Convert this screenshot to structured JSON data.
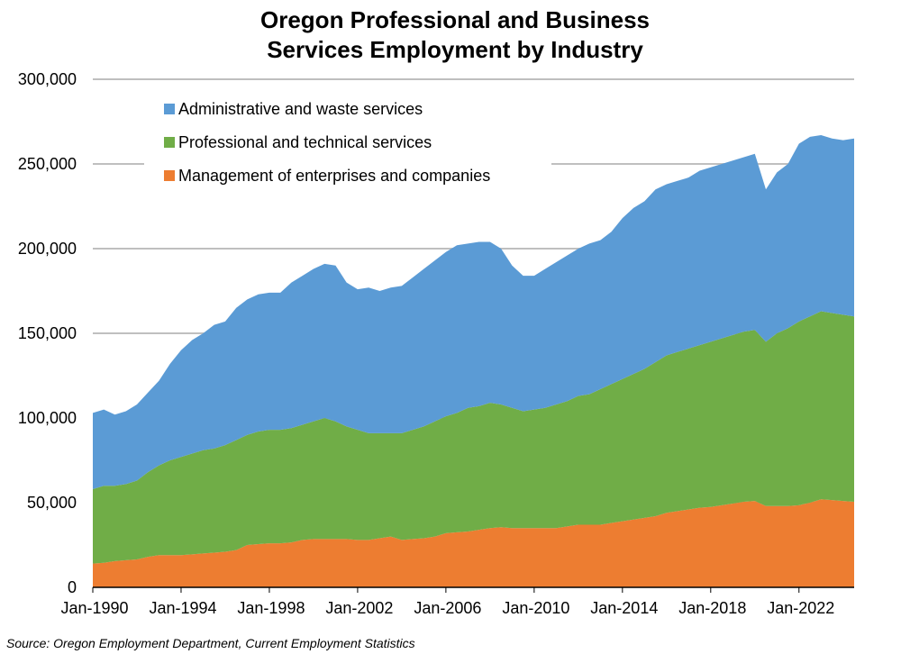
{
  "chart_data": {
    "type": "stacked_area",
    "title": "Oregon Professional and Business Services Employment by Industry",
    "source": "Source: Oregon Employment Department, Current Employment Statistics",
    "categories": [
      "Jan-1990",
      null,
      null,
      null,
      null,
      null,
      null,
      null,
      "Jan-1994",
      null,
      null,
      null,
      null,
      null,
      null,
      null,
      "Jan-1998",
      null,
      null,
      null,
      null,
      null,
      null,
      null,
      "Jan-2002",
      null,
      null,
      null,
      null,
      null,
      null,
      null,
      "Jan-2006",
      null,
      null,
      null,
      null,
      null,
      null,
      null,
      "Jan-2010",
      null,
      null,
      null,
      null,
      null,
      null,
      null,
      "Jan-2014",
      null,
      null,
      null,
      null,
      null,
      null,
      null,
      "Jan-2018",
      null,
      null,
      null,
      null,
      null,
      null,
      null,
      "Jan-2022",
      null,
      null,
      null,
      null,
      null
    ],
    "series": [
      {
        "name": "Management of enterprises and companies",
        "color": "#ed7d31",
        "values": [
          14000,
          14500,
          15500,
          16000,
          16500,
          18000,
          19000,
          19000,
          19000,
          19500,
          20000,
          20500,
          21000,
          22000,
          25000,
          25500,
          26000,
          26000,
          26500,
          28000,
          28500,
          28500,
          28500,
          28500,
          28000,
          28000,
          29000,
          30000,
          28000,
          28500,
          29000,
          30000,
          32000,
          32500,
          33000,
          34000,
          35000,
          35500,
          35000,
          35000,
          35000,
          35000,
          35000,
          36000,
          37000,
          37000,
          37000,
          38000,
          39000,
          40000,
          41000,
          42000,
          44000,
          45000,
          46000,
          47000,
          47500,
          48500,
          49500,
          50500,
          51000,
          48000,
          48000,
          48000,
          48500,
          50000,
          52000,
          51500,
          51000,
          50500
        ]
      },
      {
        "name": "Professional and technical services",
        "color": "#70ad47",
        "values": [
          44000,
          45500,
          44500,
          45000,
          46500,
          50000,
          53000,
          56000,
          58000,
          59500,
          61000,
          61500,
          63000,
          65000,
          65000,
          66500,
          67000,
          67000,
          67500,
          68000,
          69500,
          71500,
          69500,
          66500,
          65000,
          63000,
          62000,
          61000,
          63000,
          64500,
          66000,
          68000,
          69000,
          70500,
          73000,
          73000,
          74000,
          72500,
          71000,
          69000,
          70000,
          71000,
          73000,
          74000,
          76000,
          77000,
          80000,
          82000,
          84000,
          86000,
          88000,
          91000,
          93000,
          94000,
          95000,
          96000,
          97500,
          98500,
          99500,
          100500,
          101000,
          97000,
          102000,
          105000,
          108500,
          110000,
          111000,
          110500,
          110000,
          109500
        ]
      },
      {
        "name": "Administrative and waste services",
        "color": "#5b9bd5",
        "values": [
          45000,
          45000,
          42000,
          43000,
          45000,
          47000,
          50000,
          57000,
          63000,
          67000,
          69000,
          73000,
          73000,
          78000,
          80000,
          81000,
          81000,
          81000,
          86000,
          88000,
          90000,
          91000,
          92000,
          85000,
          83000,
          86000,
          84000,
          86000,
          87000,
          90000,
          93000,
          95000,
          97000,
          99000,
          97000,
          97000,
          95000,
          92000,
          84000,
          80000,
          79000,
          82000,
          84000,
          86000,
          87000,
          89000,
          88000,
          90000,
          95000,
          98000,
          99000,
          102000,
          101000,
          101000,
          101000,
          103000,
          103000,
          103000,
          103000,
          103000,
          104000,
          90000,
          95000,
          97000,
          105000,
          106000,
          104000,
          103000,
          103000,
          105000
        ]
      }
    ],
    "ylim": [
      0,
      300000
    ],
    "yticks": [
      0,
      {
        "value": 50000,
        "label": "50,000"
      },
      {
        "value": 100000,
        "label": "100,000"
      },
      {
        "value": 150000,
        "label": "150,000"
      },
      {
        "value": 200000,
        "label": "200,000"
      },
      {
        "value": 250000,
        "label": "250,000"
      },
      {
        "value": 300000,
        "label": "300,000"
      }
    ],
    "grid": true,
    "legend": "top-left"
  }
}
